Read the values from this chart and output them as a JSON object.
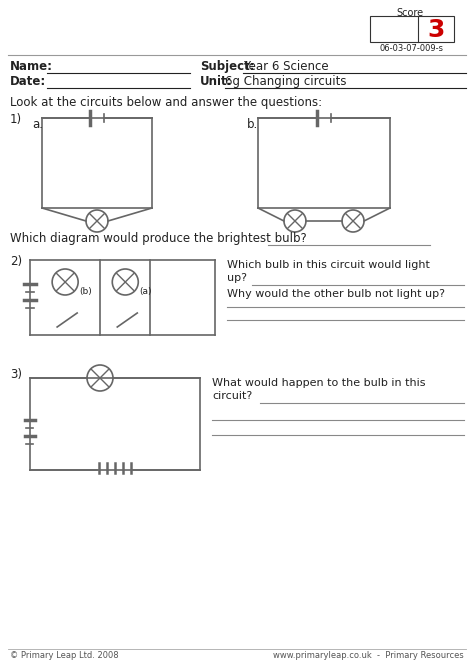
{
  "score_label": "Score",
  "score_value": "3",
  "score_code": "06-03-07-009-s",
  "name_label": "Name:",
  "date_label": "Date:",
  "subject_label": "Subject:",
  "subject_value": "Year 6 Science",
  "unit_label": "Unit:",
  "unit_value": "6g Changing circuits",
  "instruction": "Look at the circuits below and answer the questions:",
  "q1_label": "1)",
  "q1a_label": "a.",
  "q1b_label": "b.",
  "q1_question": "Which diagram would produce the brightest bulb?",
  "q2_label": "2)",
  "q2_question1": "Which bulb in this circuit would light",
  "q2_question2": "up?",
  "q2_question3": "Why would the other bulb not light up?",
  "q3_label": "3)",
  "q3_question1": "What would happen to the bulb in this",
  "q3_question2": "circuit?",
  "footer_left": "© Primary Leap Ltd. 2008",
  "footer_right": "www.primaryleap.co.uk  -  Primary Resources",
  "bg_color": "#ffffff",
  "text_color": "#222222",
  "circuit_color": "#666666",
  "score_color": "#cc0000"
}
